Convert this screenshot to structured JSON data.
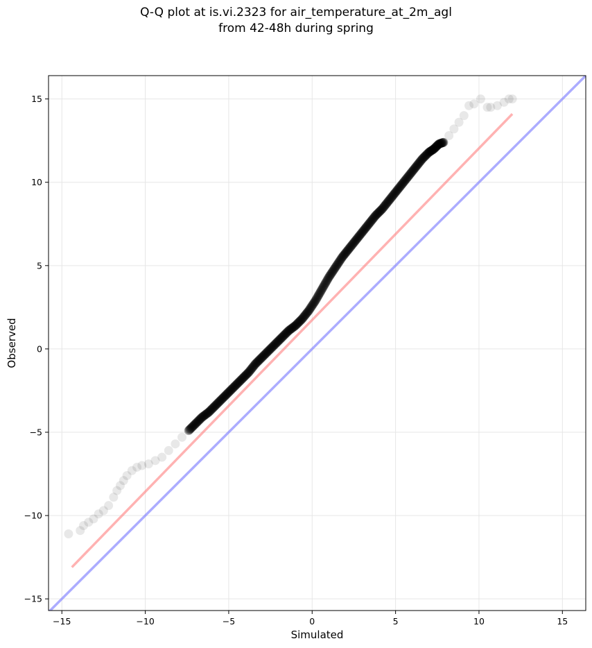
{
  "chart_data": {
    "type": "scatter",
    "title": "Q-Q plot at is.vi.2323 for air_temperature_at_2m_agl",
    "subtitle": "from 42-48h during spring",
    "xlabel": "Simulated",
    "ylabel": "Observed",
    "xlim": [
      -15.8,
      16.4
    ],
    "ylim": [
      -15.7,
      16.4
    ],
    "xticks": [
      -15,
      -10,
      -5,
      0,
      5,
      10,
      15
    ],
    "yticks": [
      -15,
      -10,
      -5,
      0,
      5,
      10,
      15
    ],
    "xtick_labels": [
      "−15",
      "−10",
      "−5",
      "0",
      "5",
      "10",
      "15"
    ],
    "ytick_labels": [
      "−15",
      "−10",
      "−5",
      "0",
      "5",
      "10",
      "15"
    ],
    "grid": true,
    "legend": "none",
    "colors": {
      "points": "#000000",
      "fit_line": "#ff7f7f",
      "identity_line": "#7f7fff",
      "grid": "#e6e6e6"
    },
    "series": [
      {
        "x": [
          -14.6,
          -13.9,
          -13.7,
          -13.4,
          -13.1,
          -12.8,
          -12.5,
          -12.2,
          -11.9,
          -11.7,
          -11.5,
          -11.3,
          -11.1,
          -10.8,
          -10.5,
          -10.2,
          -9.8,
          -9.4,
          -9.0,
          -8.6,
          -8.2,
          -7.8,
          -7.4,
          -7.0,
          -6.6,
          -6.2,
          -5.8,
          -5.4,
          -5.0,
          -4.6,
          -4.2,
          -3.8,
          -3.4,
          -3.0,
          -2.6,
          -2.2,
          -1.8,
          -1.4,
          -1.0,
          -0.6,
          -0.2,
          0.2,
          0.6,
          1.0,
          1.4,
          1.8,
          2.2,
          2.6,
          3.0,
          3.4,
          3.8,
          4.2,
          4.6,
          5.0,
          5.4,
          5.8,
          6.2,
          6.6,
          7.0,
          7.3,
          7.6,
          7.9,
          8.2,
          8.5,
          8.8,
          9.1,
          9.4,
          9.7,
          10.1,
          10.5,
          10.7,
          11.1,
          11.5,
          11.8,
          12.0
        ],
        "y": [
          -11.1,
          -10.9,
          -10.6,
          -10.4,
          -10.2,
          -9.9,
          -9.7,
          -9.4,
          -8.9,
          -8.5,
          -8.2,
          -7.9,
          -7.6,
          -7.3,
          -7.1,
          -7.0,
          -6.9,
          -6.7,
          -6.5,
          -6.1,
          -5.7,
          -5.3,
          -4.9,
          -4.5,
          -4.1,
          -3.8,
          -3.4,
          -3.0,
          -2.6,
          -2.2,
          -1.8,
          -1.4,
          -0.9,
          -0.5,
          -0.1,
          0.3,
          0.7,
          1.1,
          1.4,
          1.8,
          2.3,
          2.9,
          3.6,
          4.3,
          4.9,
          5.5,
          6.0,
          6.5,
          7.0,
          7.5,
          8.0,
          8.4,
          8.9,
          9.4,
          9.9,
          10.4,
          10.9,
          11.4,
          11.8,
          12.0,
          12.3,
          12.4,
          12.8,
          13.2,
          13.6,
          14.0,
          14.6,
          14.7,
          15.0,
          14.5,
          14.5,
          14.6,
          14.8,
          15.0,
          15.0
        ]
      }
    ],
    "fit_line": {
      "x": [
        -14.4,
        12.0
      ],
      "y": [
        -13.1,
        14.1
      ]
    },
    "identity_line": {
      "x": [
        -15.8,
        16.4
      ],
      "y": [
        -15.8,
        16.4
      ]
    }
  }
}
